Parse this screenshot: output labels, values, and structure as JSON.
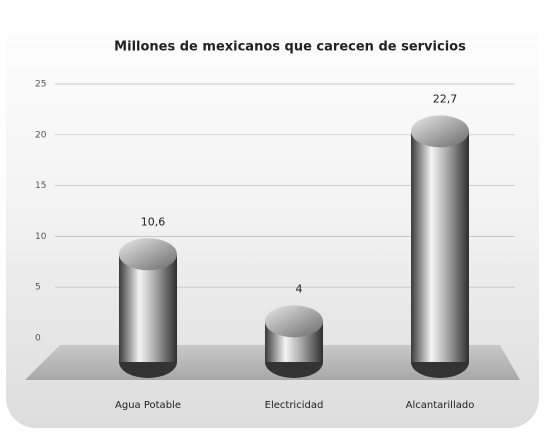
{
  "chart_data": {
    "type": "bar",
    "title": "Millones de mexicanos que carecen de servicios",
    "categories": [
      "Agua Potable",
      "Electricidad",
      "Alcantarillado"
    ],
    "values": [
      10.6,
      4,
      22.7
    ],
    "value_labels": [
      "10,6",
      "4",
      "22,7"
    ],
    "color": "#9a9a9a",
    "ylim": [
      0,
      25
    ],
    "yticks": [
      0,
      5,
      10,
      15,
      20,
      25
    ],
    "grid": true
  }
}
